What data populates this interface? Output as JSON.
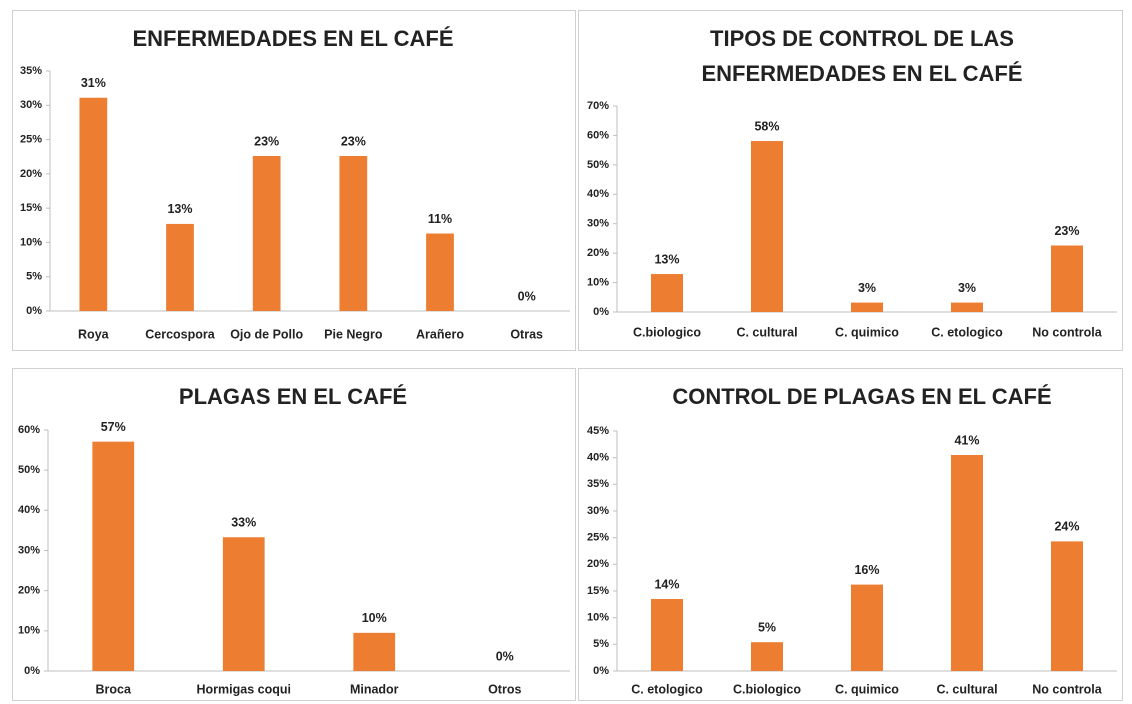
{
  "chart_data": [
    {
      "type": "bar",
      "title": "ENFERMEDADES EN EL CAFÉ",
      "categories": [
        "Roya",
        "Cercospora",
        "Ojo de Pollo",
        "Pie Negro",
        "Arañero",
        "Otras"
      ],
      "values": [
        31.1,
        12.7,
        22.6,
        22.6,
        11.3,
        0
      ],
      "value_labels": [
        "31%",
        "13%",
        "23%",
        "23%",
        "11%",
        "0%"
      ],
      "color": "#ed7d31",
      "ylim": [
        0,
        35
      ],
      "yticks": [
        {
          "value": 0,
          "label": "0%"
        },
        {
          "value": 5,
          "label": "5%"
        },
        {
          "value": 10,
          "label": "10%"
        },
        {
          "value": 15,
          "label": "15%"
        },
        {
          "value": 20,
          "label": "20%"
        },
        {
          "value": 25,
          "label": "25%"
        },
        {
          "value": 30,
          "label": "30%"
        },
        {
          "value": 35,
          "label": "35%"
        }
      ]
    },
    {
      "type": "bar",
      "title": [
        "TIPOS DE CONTROL DE LAS",
        "ENFERMEDADES EN EL CAFÉ"
      ],
      "categories": [
        "C.biologico",
        "C. cultural",
        "C. quimico",
        "C. etologico",
        "No controla"
      ],
      "values": [
        12.9,
        58.1,
        3.2,
        3.2,
        22.6
      ],
      "value_labels": [
        "13%",
        "58%",
        "3%",
        "3%",
        "23%"
      ],
      "color": "#ed7d31",
      "ylim": [
        0,
        70
      ],
      "yticks": [
        {
          "value": 0,
          "label": "0%"
        },
        {
          "value": 10,
          "label": "10%"
        },
        {
          "value": 20,
          "label": "20%"
        },
        {
          "value": 30,
          "label": "30%"
        },
        {
          "value": 40,
          "label": "40%"
        },
        {
          "value": 50,
          "label": "50%"
        },
        {
          "value": 60,
          "label": "60%"
        },
        {
          "value": 70,
          "label": "70%"
        }
      ]
    },
    {
      "type": "bar",
      "title": "PLAGAS EN EL CAFÉ",
      "categories": [
        "Broca",
        "Hormigas coqui",
        "Minador",
        "Otros"
      ],
      "values": [
        57.1,
        33.3,
        9.5,
        0
      ],
      "value_labels": [
        "57%",
        "33%",
        "10%",
        "0%"
      ],
      "color": "#ed7d31",
      "ylim": [
        0,
        60
      ],
      "yticks": [
        {
          "value": 0,
          "label": "0%"
        },
        {
          "value": 10,
          "label": "10%"
        },
        {
          "value": 20,
          "label": "20%"
        },
        {
          "value": 30,
          "label": "30%"
        },
        {
          "value": 40,
          "label": "40%"
        },
        {
          "value": 50,
          "label": "50%"
        },
        {
          "value": 60,
          "label": "60%"
        }
      ]
    },
    {
      "type": "bar",
      "title": "CONTROL DE PLAGAS EN EL CAFÉ",
      "categories": [
        "C. etologico",
        "C.biologico",
        "C. quimico",
        "C. cultural",
        "No controla"
      ],
      "values": [
        13.5,
        5.4,
        16.2,
        40.5,
        24.3
      ],
      "value_labels": [
        "14%",
        "5%",
        "16%",
        "41%",
        "24%"
      ],
      "color": "#ed7d31",
      "ylim": [
        0,
        45
      ],
      "yticks": [
        {
          "value": 0,
          "label": "0%"
        },
        {
          "value": 5,
          "label": "5%"
        },
        {
          "value": 10,
          "label": "10%"
        },
        {
          "value": 15,
          "label": "15%"
        },
        {
          "value": 20,
          "label": "20%"
        },
        {
          "value": 25,
          "label": "25%"
        },
        {
          "value": 30,
          "label": "30%"
        },
        {
          "value": 35,
          "label": "35%"
        },
        {
          "value": 40,
          "label": "40%"
        },
        {
          "value": 45,
          "label": "45%"
        }
      ]
    }
  ]
}
